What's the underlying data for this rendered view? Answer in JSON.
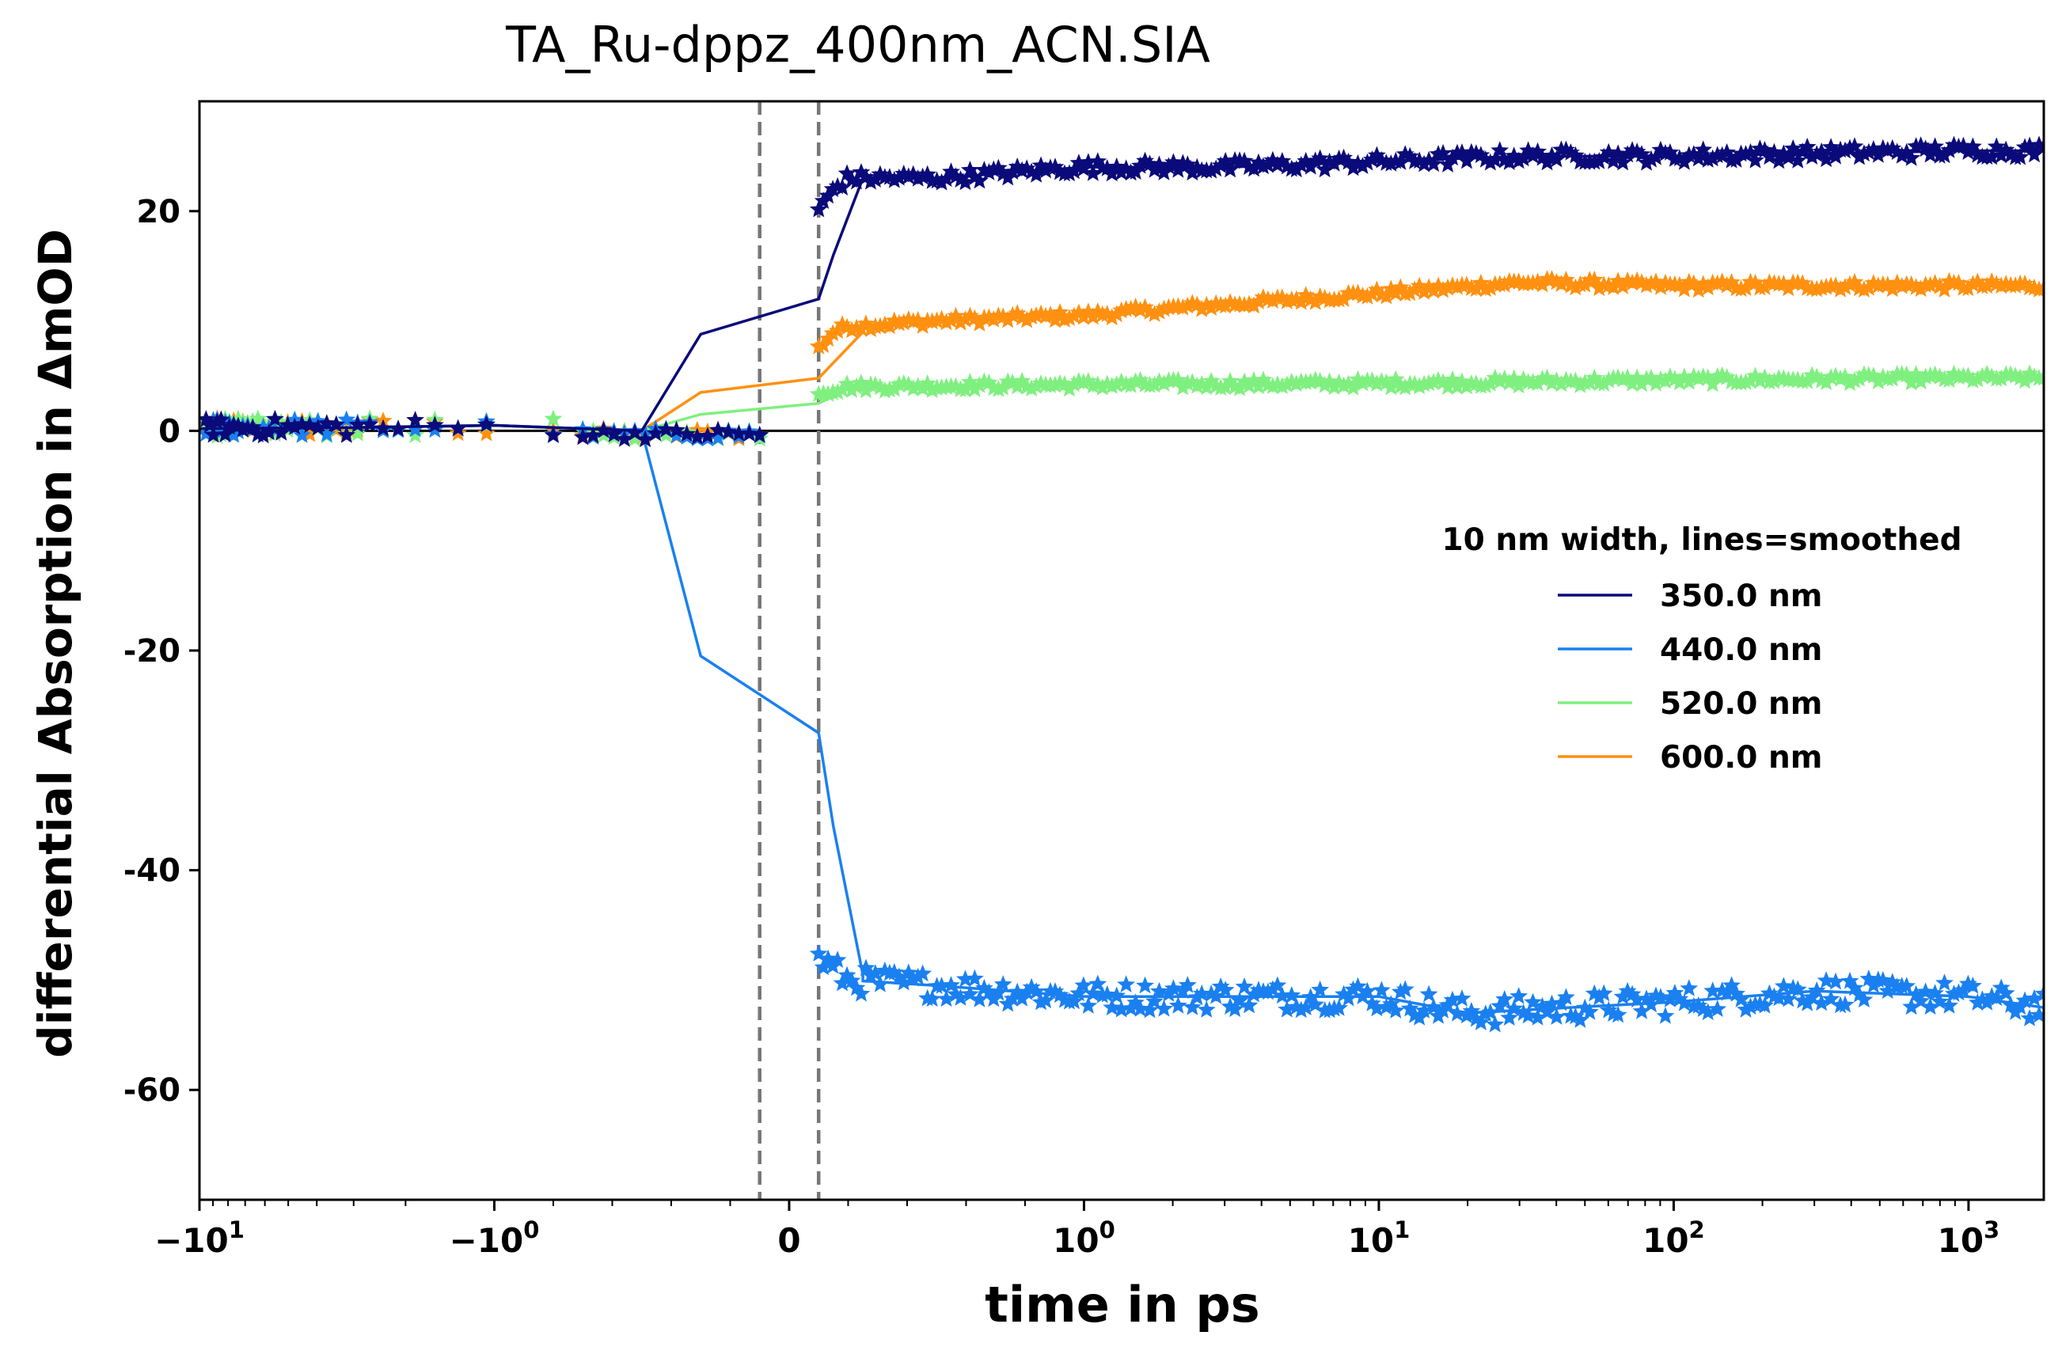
{
  "chart_data": {
    "type": "line",
    "title": "TA_Ru-dppz_400nm_ACN.SIA",
    "xlabel": "time in ps",
    "ylabel": "differential Absorption in ΔmOD",
    "x_scale": "symlog",
    "x_linthresh": 1,
    "xlim": [
      -10,
      1800
    ],
    "ylim": [
      -70,
      30
    ],
    "x_ticks": [
      {
        "value": -10,
        "label": "−10",
        "sup": "1"
      },
      {
        "value": -1,
        "label": "−10",
        "sup": "0"
      },
      {
        "value": 0,
        "label": "0",
        "sup": ""
      },
      {
        "value": 1,
        "label": "10",
        "sup": "0"
      },
      {
        "value": 10,
        "label": "10",
        "sup": "1"
      },
      {
        "value": 100,
        "label": "10",
        "sup": "2"
      },
      {
        "value": 1000,
        "label": "10",
        "sup": "3"
      }
    ],
    "y_ticks": [
      {
        "value": 20,
        "label": "20"
      },
      {
        "value": 0,
        "label": "0"
      },
      {
        "value": -20,
        "label": "-20"
      },
      {
        "value": -40,
        "label": "-40"
      },
      {
        "value": -60,
        "label": "-60"
      }
    ],
    "vlines": [
      -0.1,
      0.1
    ],
    "hline": 0,
    "grid": false,
    "legend": {
      "title": "10 nm width, lines=smoothed",
      "position": "center-right"
    },
    "series": [
      {
        "name": "350.0 nm",
        "color": "#0a0a7a",
        "plateau": [
          [
            0.1,
            20
          ],
          [
            0.15,
            22
          ],
          [
            0.2,
            23
          ],
          [
            0.5,
            23
          ],
          [
            1,
            24
          ],
          [
            3,
            24
          ],
          [
            10,
            24.5
          ],
          [
            30,
            25
          ],
          [
            100,
            25
          ],
          [
            1000,
            25.5
          ],
          [
            1800,
            25.5
          ]
        ]
      },
      {
        "name": "440.0 nm",
        "color": "#1a80f0",
        "plateau": [
          [
            0.1,
            -48
          ],
          [
            0.15,
            -49
          ],
          [
            0.2,
            -50
          ],
          [
            0.5,
            -50.5
          ],
          [
            1,
            -51.5
          ],
          [
            10,
            -51.5
          ],
          [
            20,
            -53
          ],
          [
            100,
            -52
          ],
          [
            300,
            -51
          ],
          [
            1000,
            -51.5
          ],
          [
            1800,
            -52.5
          ]
        ]
      },
      {
        "name": "520.0 nm",
        "color": "#7ff07f",
        "plateau": [
          [
            0.1,
            3.5
          ],
          [
            0.2,
            4
          ],
          [
            1,
            4.2
          ],
          [
            10,
            4.3
          ],
          [
            100,
            4.6
          ],
          [
            1000,
            4.8
          ],
          [
            1800,
            4.8
          ]
        ]
      },
      {
        "name": "600.0 nm",
        "color": "#ff9010",
        "plateau": [
          [
            0.1,
            7.5
          ],
          [
            0.15,
            9
          ],
          [
            0.2,
            9.5
          ],
          [
            0.5,
            10
          ],
          [
            1,
            10.5
          ],
          [
            3,
            11.5
          ],
          [
            10,
            12.5
          ],
          [
            30,
            13.5
          ],
          [
            100,
            13.2
          ],
          [
            1000,
            13.2
          ],
          [
            1800,
            13.2
          ]
        ]
      }
    ]
  }
}
